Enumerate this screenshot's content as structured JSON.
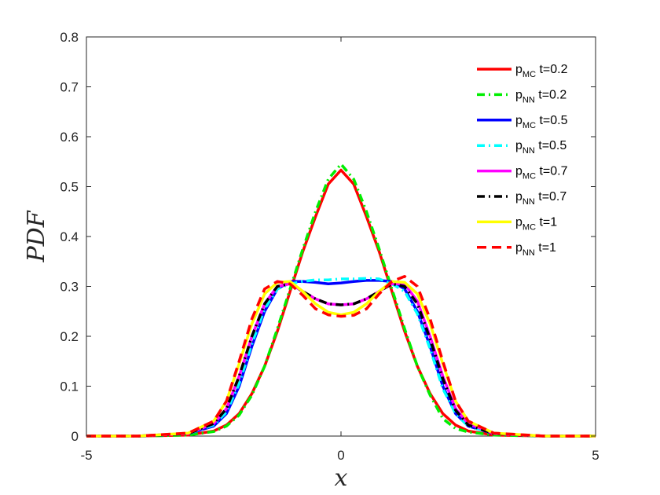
{
  "chart_data": {
    "type": "line",
    "xlabel": "x",
    "ylabel": "PDF",
    "xlim": [
      -5,
      5
    ],
    "ylim": [
      0,
      0.8
    ],
    "xticks": [
      -5,
      0,
      5
    ],
    "xtick_labels": [
      "-5",
      "0",
      "5"
    ],
    "yticks": [
      0,
      0.1,
      0.2,
      0.3,
      0.4,
      0.5,
      0.6,
      0.7,
      0.8
    ],
    "ytick_labels": [
      "0",
      "0.1",
      "0.2",
      "0.3",
      "0.4",
      "0.5",
      "0.6",
      "0.7",
      "0.8"
    ],
    "grid": false,
    "legend_position": "top-right",
    "x": [
      -5,
      -4,
      -3,
      -2.5,
      -2.25,
      -2,
      -1.75,
      -1.5,
      -1.25,
      -1,
      -0.75,
      -0.5,
      -0.25,
      0,
      0.25,
      0.5,
      0.75,
      1,
      1.25,
      1.5,
      1.75,
      2,
      2.25,
      2.5,
      3,
      4,
      5
    ],
    "series": [
      {
        "name": "p_MC t=0.2",
        "base": "p",
        "sub": "MC",
        "suffix": " t=0.2",
        "color": "#ff0000",
        "dash": "solid",
        "values": [
          0,
          0,
          0.002,
          0.01,
          0.022,
          0.045,
          0.085,
          0.14,
          0.21,
          0.29,
          0.37,
          0.44,
          0.505,
          0.533,
          0.505,
          0.44,
          0.37,
          0.29,
          0.21,
          0.14,
          0.085,
          0.045,
          0.022,
          0.01,
          0.002,
          0,
          0
        ]
      },
      {
        "name": "p_NN t=0.2",
        "base": "p",
        "sub": "NN",
        "suffix": " t=0.2",
        "color": "#00ee00",
        "dash": "dashdot",
        "values": [
          0,
          0,
          0.002,
          0.009,
          0.02,
          0.042,
          0.082,
          0.14,
          0.215,
          0.295,
          0.375,
          0.45,
          0.515,
          0.545,
          0.515,
          0.45,
          0.375,
          0.295,
          0.215,
          0.14,
          0.082,
          0.035,
          0.015,
          0.008,
          0.002,
          0,
          0
        ]
      },
      {
        "name": "p_MC t=0.5",
        "base": "p",
        "sub": "MC",
        "suffix": " t=0.5",
        "color": "#0000ff",
        "dash": "solid",
        "values": [
          0,
          0,
          0.005,
          0.02,
          0.045,
          0.1,
          0.18,
          0.25,
          0.295,
          0.31,
          0.31,
          0.308,
          0.305,
          0.307,
          0.31,
          0.312,
          0.312,
          0.31,
          0.295,
          0.25,
          0.18,
          0.1,
          0.045,
          0.02,
          0.005,
          0,
          0
        ]
      },
      {
        "name": "p_NN t=0.5",
        "base": "p",
        "sub": "NN",
        "suffix": " t=0.5",
        "color": "#00ffff",
        "dash": "dashdot",
        "values": [
          0,
          0,
          0.005,
          0.022,
          0.048,
          0.105,
          0.185,
          0.255,
          0.295,
          0.305,
          0.31,
          0.313,
          0.313,
          0.315,
          0.315,
          0.316,
          0.315,
          0.305,
          0.29,
          0.245,
          0.175,
          0.095,
          0.045,
          0.02,
          0.005,
          0,
          0
        ]
      },
      {
        "name": "p_MC t=0.7",
        "base": "p",
        "sub": "MC",
        "suffix": " t=0.7",
        "color": "#ff00ff",
        "dash": "solid",
        "values": [
          0,
          0,
          0.005,
          0.025,
          0.055,
          0.12,
          0.2,
          0.265,
          0.3,
          0.305,
          0.29,
          0.275,
          0.265,
          0.263,
          0.265,
          0.275,
          0.29,
          0.305,
          0.305,
          0.27,
          0.2,
          0.12,
          0.055,
          0.025,
          0.005,
          0,
          0
        ]
      },
      {
        "name": "p_NN t=0.7",
        "base": "p",
        "sub": "NN",
        "suffix": " t=0.7",
        "color": "#000000",
        "dash": "dashdot",
        "values": [
          0,
          0,
          0.005,
          0.025,
          0.055,
          0.12,
          0.2,
          0.265,
          0.3,
          0.305,
          0.29,
          0.275,
          0.265,
          0.263,
          0.265,
          0.275,
          0.29,
          0.305,
          0.3,
          0.265,
          0.195,
          0.115,
          0.052,
          0.022,
          0.005,
          0,
          0
        ]
      },
      {
        "name": "p_MC t=1",
        "base": "p",
        "sub": "MC",
        "suffix": " t=1",
        "color": "#ffff00",
        "dash": "solid",
        "values": [
          0,
          0,
          0.006,
          0.03,
          0.07,
          0.145,
          0.225,
          0.285,
          0.308,
          0.31,
          0.29,
          0.265,
          0.248,
          0.243,
          0.248,
          0.265,
          0.29,
          0.31,
          0.308,
          0.285,
          0.225,
          0.145,
          0.07,
          0.03,
          0.006,
          0,
          0
        ]
      },
      {
        "name": "p_NN t=1",
        "base": "p",
        "sub": "NN",
        "suffix": " t=1",
        "color": "#ff0000",
        "dash": "dashed",
        "values": [
          0,
          0,
          0.006,
          0.03,
          0.07,
          0.15,
          0.235,
          0.295,
          0.31,
          0.305,
          0.282,
          0.255,
          0.243,
          0.24,
          0.242,
          0.255,
          0.285,
          0.31,
          0.32,
          0.3,
          0.235,
          0.15,
          0.07,
          0.03,
          0.006,
          0,
          0
        ]
      }
    ]
  }
}
